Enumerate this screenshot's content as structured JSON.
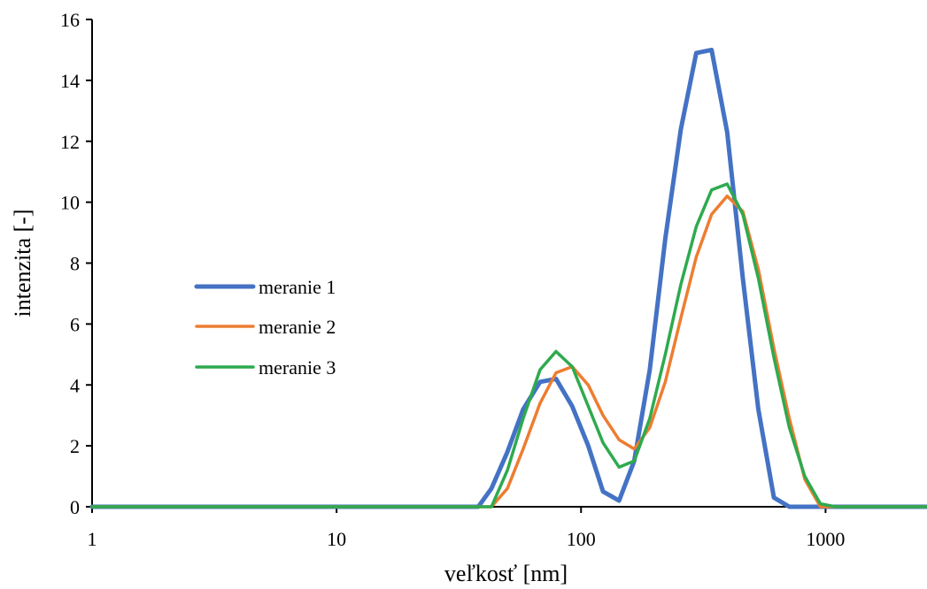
{
  "chart_data": {
    "type": "line",
    "xscale": "log",
    "xlabel": "veľkosť [nm]",
    "ylabel": "intenzita [-]",
    "xlim": [
      1,
      2600
    ],
    "ylim": [
      0,
      16
    ],
    "x_ticks": [
      1,
      10,
      100,
      1000
    ],
    "x_tick_labels": [
      "1",
      "10",
      "100",
      "1000"
    ],
    "y_ticks": [
      0,
      2,
      4,
      6,
      8,
      10,
      12,
      14,
      16
    ],
    "y_tick_labels": [
      "0",
      "2",
      "4",
      "6",
      "8",
      "10",
      "12",
      "14",
      "16"
    ],
    "grid": false,
    "legend_position": "left-middle",
    "series": [
      {
        "name": "meranie 1",
        "color": "#4472C4",
        "points": [
          [
            1,
            0
          ],
          [
            38,
            0
          ],
          [
            43,
            0.6
          ],
          [
            50,
            1.8
          ],
          [
            58,
            3.2
          ],
          [
            68,
            4.1
          ],
          [
            79,
            4.2
          ],
          [
            92,
            3.3
          ],
          [
            107,
            2.0
          ],
          [
            123,
            0.5
          ],
          [
            143,
            0.2
          ],
          [
            165,
            1.5
          ],
          [
            191,
            4.5
          ],
          [
            221,
            8.8
          ],
          [
            256,
            12.4
          ],
          [
            296,
            14.9
          ],
          [
            342,
            15.0
          ],
          [
            396,
            12.3
          ],
          [
            459,
            7.5
          ],
          [
            531,
            3.2
          ],
          [
            615,
            0.3
          ],
          [
            711,
            0
          ],
          [
            2600,
            0
          ]
        ]
      },
      {
        "name": "meranie 2",
        "color": "#ED7D31",
        "points": [
          [
            1,
            0
          ],
          [
            43,
            0
          ],
          [
            50,
            0.6
          ],
          [
            58,
            1.9
          ],
          [
            68,
            3.4
          ],
          [
            79,
            4.4
          ],
          [
            92,
            4.6
          ],
          [
            107,
            4.0
          ],
          [
            123,
            3.0
          ],
          [
            143,
            2.2
          ],
          [
            165,
            1.9
          ],
          [
            191,
            2.6
          ],
          [
            221,
            4.1
          ],
          [
            256,
            6.2
          ],
          [
            296,
            8.2
          ],
          [
            342,
            9.6
          ],
          [
            396,
            10.2
          ],
          [
            459,
            9.7
          ],
          [
            531,
            7.8
          ],
          [
            615,
            5.2
          ],
          [
            711,
            2.9
          ],
          [
            823,
            0.9
          ],
          [
            953,
            0
          ],
          [
            1100,
            0
          ],
          [
            2600,
            0
          ]
        ]
      },
      {
        "name": "meranie 3",
        "color": "#2EAA4E",
        "points": [
          [
            1,
            0
          ],
          [
            43,
            0
          ],
          [
            50,
            1.2
          ],
          [
            58,
            2.9
          ],
          [
            68,
            4.5
          ],
          [
            79,
            5.1
          ],
          [
            92,
            4.6
          ],
          [
            107,
            3.3
          ],
          [
            123,
            2.1
          ],
          [
            143,
            1.3
          ],
          [
            165,
            1.5
          ],
          [
            191,
            2.9
          ],
          [
            221,
            5.0
          ],
          [
            256,
            7.3
          ],
          [
            296,
            9.2
          ],
          [
            342,
            10.4
          ],
          [
            396,
            10.6
          ],
          [
            459,
            9.6
          ],
          [
            531,
            7.5
          ],
          [
            615,
            4.9
          ],
          [
            711,
            2.6
          ],
          [
            823,
            1.0
          ],
          [
            953,
            0.1
          ],
          [
            1100,
            0
          ],
          [
            2600,
            0
          ]
        ]
      }
    ]
  }
}
